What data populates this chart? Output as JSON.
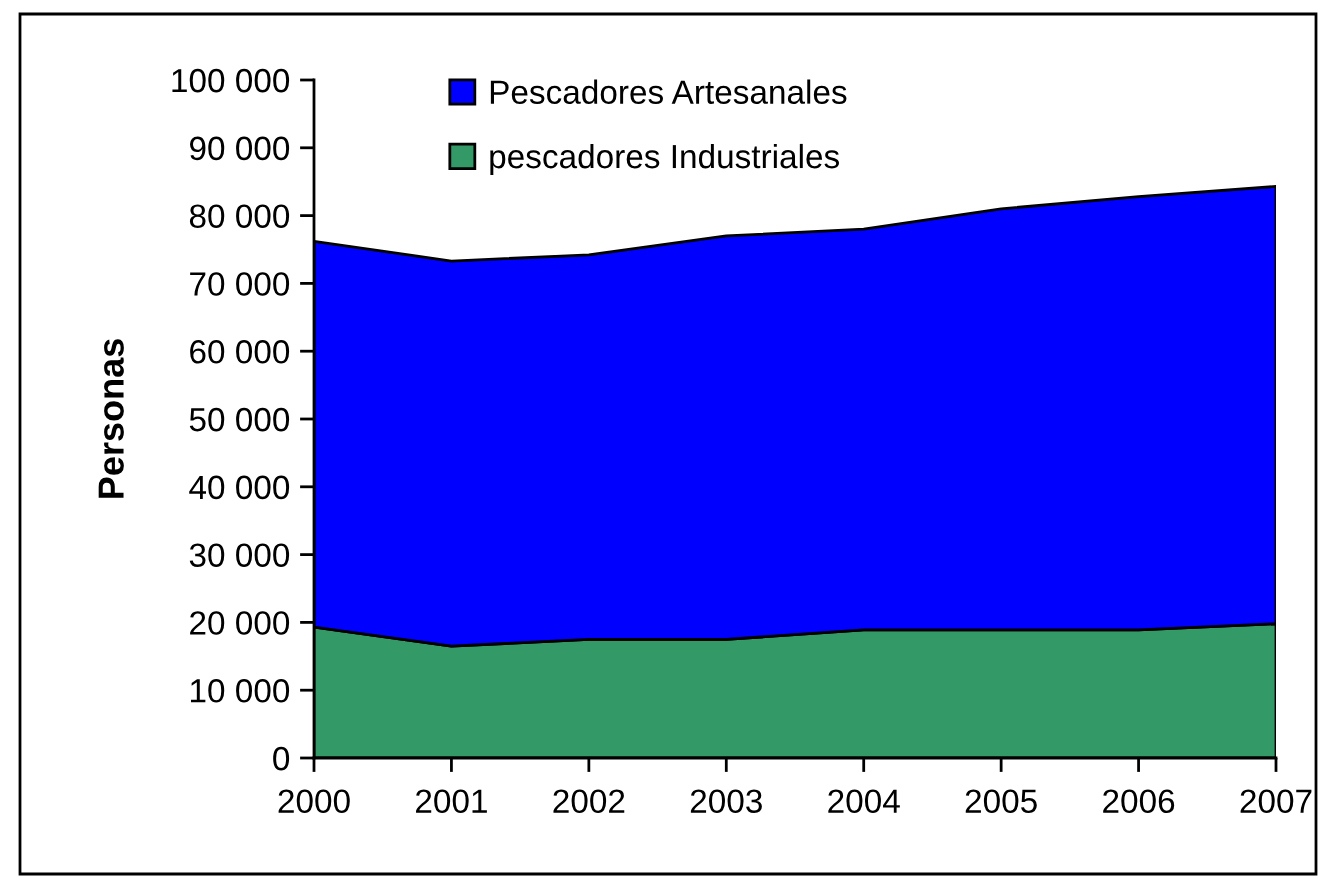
{
  "chart_data": {
    "type": "area",
    "stacked": true,
    "ylabel": "Personas",
    "x": [
      2000,
      2001,
      2002,
      2003,
      2004,
      2005,
      2006,
      2007
    ],
    "series": [
      {
        "name": "pescadores Industriales",
        "color": "#339966",
        "values": [
          19300,
          16500,
          17500,
          17500,
          18900,
          18900,
          18900,
          19800
        ]
      },
      {
        "name": "Pescadores Artesanales",
        "color": "#0000ff",
        "values": [
          56900,
          56800,
          56700,
          59500,
          59100,
          62100,
          63900,
          64500
        ]
      }
    ],
    "xlim": [
      2000,
      2007
    ],
    "xticks": [
      2000,
      2001,
      2002,
      2003,
      2004,
      2005,
      2006,
      2007
    ],
    "ylim": [
      0,
      100000
    ],
    "yticks": [
      {
        "value": 0,
        "label": "0"
      },
      {
        "value": 10000,
        "label": "10 000"
      },
      {
        "value": 20000,
        "label": "20 000"
      },
      {
        "value": 30000,
        "label": "30 000"
      },
      {
        "value": 40000,
        "label": "40 000"
      },
      {
        "value": 50000,
        "label": "50 000"
      },
      {
        "value": 60000,
        "label": "60 000"
      },
      {
        "value": 70000,
        "label": "70 000"
      },
      {
        "value": 80000,
        "label": "80 000"
      },
      {
        "value": 90000,
        "label": "90 000"
      },
      {
        "value": 100000,
        "label": "100 000"
      }
    ],
    "grid": false,
    "legend": "top left"
  }
}
